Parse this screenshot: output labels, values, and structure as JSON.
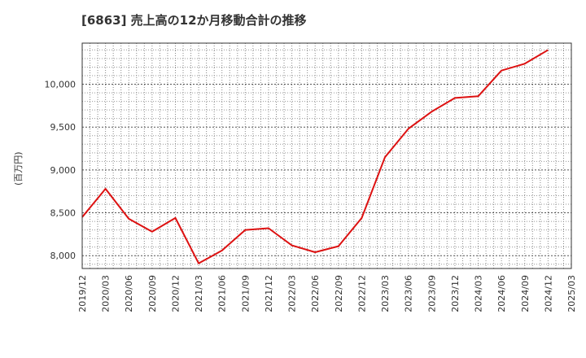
{
  "chart_data": {
    "type": "line",
    "title": "[6863]  売上高の12か月移動合計の推移",
    "ylabel": "(百万円)",
    "xlabel": "",
    "x": [
      "2019/12",
      "2020/03",
      "2020/06",
      "2020/09",
      "2020/12",
      "2021/03",
      "2021/06",
      "2021/09",
      "2021/12",
      "2022/03",
      "2022/06",
      "2022/09",
      "2022/12",
      "2023/03",
      "2023/06",
      "2023/09",
      "2023/12",
      "2024/03",
      "2024/06",
      "2024/09",
      "2024/12",
      "2025/03"
    ],
    "series": [
      {
        "name": "売上高",
        "color": "#dd1111",
        "values": [
          8450,
          8780,
          8430,
          8280,
          8440,
          7910,
          8060,
          8300,
          8320,
          8120,
          8040,
          8110,
          8440,
          9150,
          9480,
          9680,
          9840,
          9860,
          10160,
          10240,
          10400,
          null
        ]
      }
    ],
    "ylim": [
      7850,
      10480
    ],
    "yticks": [
      8000,
      8500,
      9000,
      9500,
      10000
    ],
    "ytick_labels": [
      "8,000",
      "8,500",
      "9,000",
      "9,500",
      "10,000"
    ],
    "grid": true
  }
}
